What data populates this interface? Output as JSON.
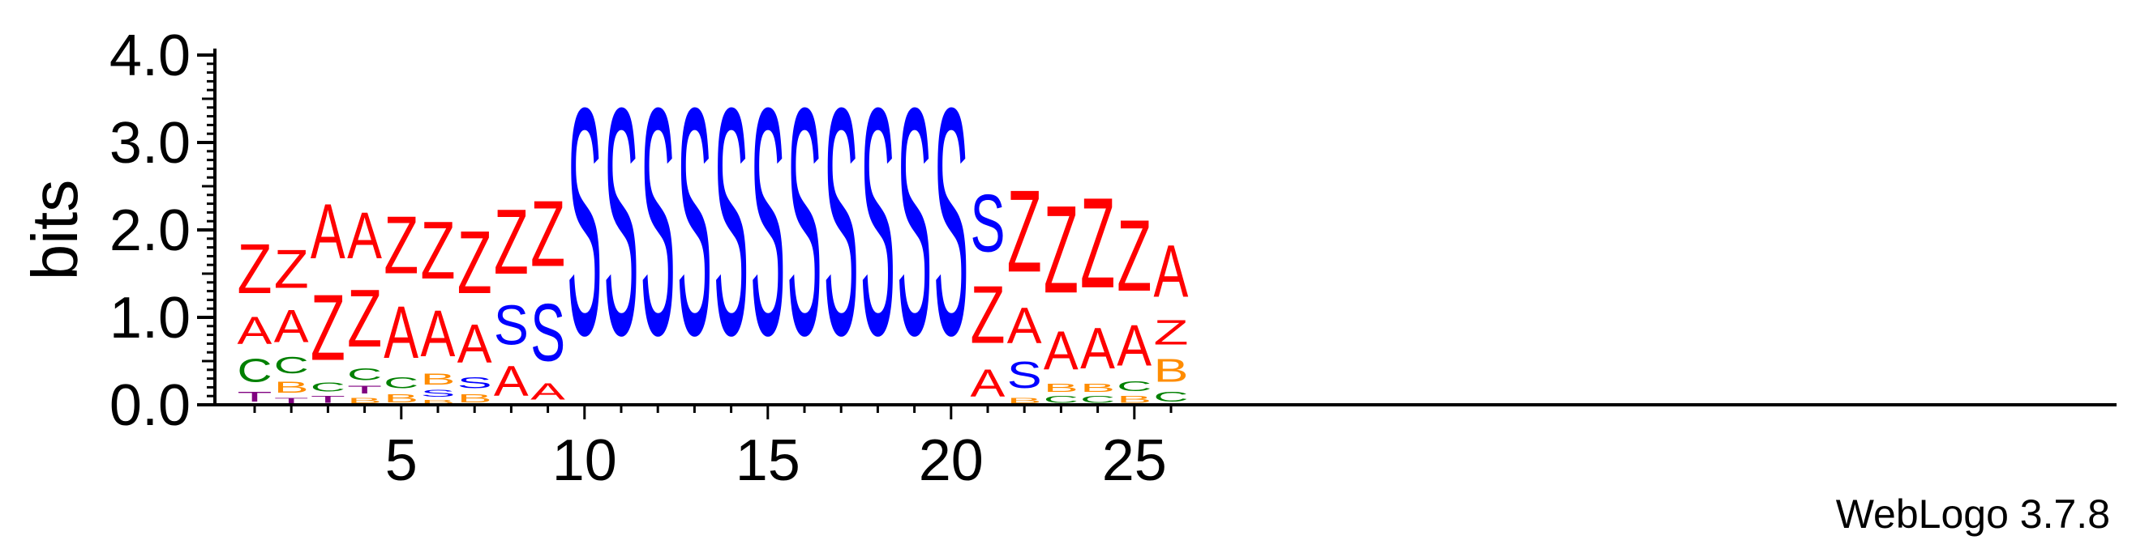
{
  "chart_data": {
    "type": "sequence-logo",
    "ylabel": "bits",
    "ylim": [
      0,
      4.0
    ],
    "y_ticks": [
      "0.0",
      "1.0",
      "2.0",
      "3.0",
      "4.0"
    ],
    "y_tick_values": [
      0,
      1,
      2,
      3,
      4
    ],
    "x_ticks": [
      "5",
      "10",
      "15",
      "20",
      "25"
    ],
    "x_tick_values": [
      5,
      10,
      15,
      20,
      25
    ],
    "credit": "WebLogo 3.7.8",
    "colors": {
      "Z": "#ff0000",
      "A": "#ff0000",
      "S": "#0000ff",
      "C": "#008000",
      "B": "#ff8c00",
      "T": "#800080"
    },
    "positions": [
      {
        "pos": 1,
        "stack": [
          [
            "T",
            0.18
          ],
          [
            "C",
            0.42
          ],
          [
            "A",
            0.5
          ],
          [
            "Z",
            0.9
          ]
        ]
      },
      {
        "pos": 2,
        "stack": [
          [
            "T",
            0.1
          ],
          [
            "B",
            0.2
          ],
          [
            "C",
            0.3
          ],
          [
            "A",
            0.6
          ],
          [
            "Z",
            0.7
          ]
        ]
      },
      {
        "pos": 3,
        "stack": [
          [
            "T",
            0.12
          ],
          [
            "C",
            0.16
          ],
          [
            "Z",
            1.2
          ],
          [
            "A",
            1.0
          ]
        ]
      },
      {
        "pos": 4,
        "stack": [
          [
            "B",
            0.1
          ],
          [
            "T",
            0.14
          ],
          [
            "C",
            0.22
          ],
          [
            "Z",
            1.05
          ],
          [
            "A",
            0.85
          ]
        ]
      },
      {
        "pos": 5,
        "stack": [
          [
            "B",
            0.15
          ],
          [
            "C",
            0.2
          ],
          [
            "A",
            0.95
          ],
          [
            "Z",
            1.05
          ]
        ]
      },
      {
        "pos": 6,
        "stack": [
          [
            "B",
            0.07
          ],
          [
            "S",
            0.12
          ],
          [
            "B",
            0.2
          ],
          [
            "A",
            0.85
          ],
          [
            "Z",
            1.05
          ]
        ]
      },
      {
        "pos": 7,
        "stack": [
          [
            "B",
            0.15
          ],
          [
            "S",
            0.2
          ],
          [
            "A",
            0.7
          ],
          [
            "Z",
            1.15
          ]
        ]
      },
      {
        "pos": 8,
        "stack": [
          [
            "A",
            0.55
          ],
          [
            "S",
            0.72
          ],
          [
            "Z",
            1.18
          ]
        ]
      },
      {
        "pos": 9,
        "stack": [
          [
            "A",
            0.3
          ],
          [
            "S",
            1.05
          ],
          [
            "Z",
            1.2
          ]
        ]
      },
      {
        "pos": 10,
        "stack": [
          [
            "S",
            4.15
          ]
        ]
      },
      {
        "pos": 11,
        "stack": [
          [
            "S",
            4.15
          ]
        ]
      },
      {
        "pos": 12,
        "stack": [
          [
            "S",
            4.15
          ]
        ]
      },
      {
        "pos": 13,
        "stack": [
          [
            "S",
            4.15
          ]
        ]
      },
      {
        "pos": 14,
        "stack": [
          [
            "S",
            4.15
          ]
        ]
      },
      {
        "pos": 15,
        "stack": [
          [
            "S",
            4.15
          ]
        ]
      },
      {
        "pos": 16,
        "stack": [
          [
            "S",
            4.15
          ]
        ]
      },
      {
        "pos": 17,
        "stack": [
          [
            "S",
            4.15
          ]
        ]
      },
      {
        "pos": 18,
        "stack": [
          [
            "S",
            4.15
          ]
        ]
      },
      {
        "pos": 19,
        "stack": [
          [
            "S",
            4.15
          ]
        ]
      },
      {
        "pos": 20,
        "stack": [
          [
            "S",
            4.15
          ]
        ]
      },
      {
        "pos": 21,
        "stack": [
          [
            "A",
            0.5
          ],
          [
            "Z",
            1.05
          ],
          [
            "S",
            1.05
          ]
        ]
      },
      {
        "pos": 22,
        "stack": [
          [
            "B",
            0.1
          ],
          [
            "S",
            0.48
          ],
          [
            "A",
            0.65
          ],
          [
            "Z",
            1.5
          ]
        ]
      },
      {
        "pos": 23,
        "stack": [
          [
            "C",
            0.12
          ],
          [
            "B",
            0.15
          ],
          [
            "A",
            0.7
          ],
          [
            "Z",
            1.6
          ]
        ]
      },
      {
        "pos": 24,
        "stack": [
          [
            "C",
            0.12
          ],
          [
            "B",
            0.15
          ],
          [
            "A",
            0.75
          ],
          [
            "Z",
            1.65
          ]
        ]
      },
      {
        "pos": 25,
        "stack": [
          [
            "B",
            0.12
          ],
          [
            "C",
            0.18
          ],
          [
            "A",
            0.75
          ],
          [
            "Z",
            1.3
          ]
        ]
      },
      {
        "pos": 26,
        "stack": [
          [
            "C",
            0.18
          ],
          [
            "B",
            0.42
          ],
          [
            "Z",
            0.45
          ],
          [
            "A",
            0.95
          ]
        ]
      }
    ]
  }
}
